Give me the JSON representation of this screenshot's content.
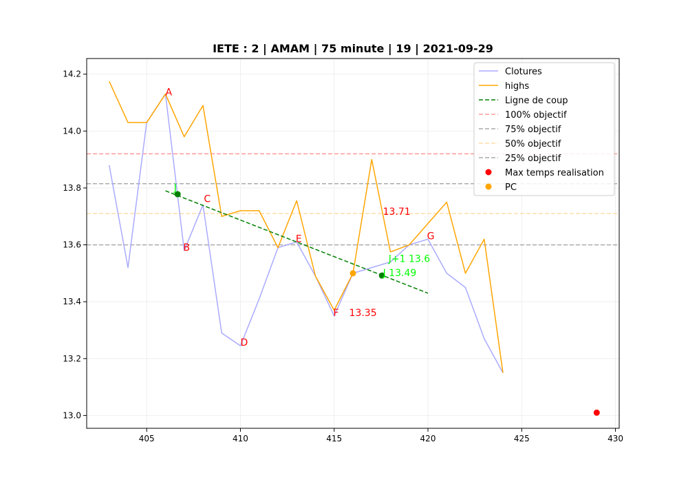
{
  "chart_data": {
    "type": "line",
    "title": "IETE : 2 | AMAM | 75 minute | 19 | 2021-09-29",
    "xlabel": "",
    "ylabel": "",
    "xlim": [
      401.8,
      430.2
    ],
    "ylim": [
      12.955,
      14.255
    ],
    "xticks": [
      405,
      410,
      415,
      420,
      425,
      430
    ],
    "yticks": [
      13.0,
      13.2,
      13.4,
      13.6,
      13.8,
      14.0,
      14.2
    ],
    "grid": true,
    "legend_position": "top-right",
    "series": [
      {
        "name": "Clotures",
        "kind": "line",
        "color": "#aaaaff",
        "x": [
          403,
          404,
          405,
          406,
          407,
          408,
          409,
          410,
          411,
          412,
          413,
          414,
          415,
          416,
          417,
          418,
          419,
          420,
          421,
          422,
          423,
          424
        ],
        "y": [
          13.88,
          13.52,
          14.03,
          14.13,
          13.58,
          13.74,
          13.29,
          13.245,
          13.41,
          13.59,
          13.61,
          13.49,
          13.35,
          13.5,
          13.52,
          13.54,
          13.6,
          13.62,
          13.5,
          13.45,
          13.27,
          13.15
        ]
      },
      {
        "name": "highs",
        "kind": "line",
        "color": "#ffa500",
        "x": [
          403,
          404,
          405,
          406,
          407,
          408,
          409,
          410,
          411,
          412,
          413,
          414,
          415,
          416,
          417,
          418,
          419,
          420,
          421,
          422,
          423,
          424
        ],
        "y": [
          14.175,
          14.03,
          14.03,
          14.13,
          13.98,
          14.09,
          13.7,
          13.72,
          13.72,
          13.59,
          13.755,
          13.49,
          13.37,
          13.5,
          13.9,
          13.575,
          13.6,
          13.675,
          13.75,
          13.5,
          13.62,
          13.15
        ]
      },
      {
        "name": "Ligne de coup",
        "kind": "dashed-line",
        "color": "#008000",
        "x": [
          406,
          420
        ],
        "y": [
          13.79,
          13.43
        ]
      },
      {
        "name": "100% objectif",
        "kind": "hline",
        "color": "#ff9999",
        "y": 13.92
      },
      {
        "name": "75% objectif",
        "kind": "hline",
        "color": "#aaaaaa",
        "y": 13.815
      },
      {
        "name": "50% objectif",
        "kind": "hline",
        "color": "#ffddaa",
        "y": 13.71
      },
      {
        "name": "25% objectif",
        "kind": "hline",
        "color": "#aaaaaa",
        "y": 13.6
      },
      {
        "name": "Max temps realisation",
        "kind": "scatter",
        "color": "#ff0000",
        "x": [
          429
        ],
        "y": [
          13.01
        ]
      },
      {
        "name": "PC",
        "kind": "scatter",
        "color": "#ffa500",
        "x": [
          416
        ],
        "y": [
          13.5
        ]
      }
    ],
    "green_points": [
      {
        "x": 406.65,
        "y": 13.778
      },
      {
        "x": 417.55,
        "y": 13.492
      }
    ],
    "annotations": [
      {
        "text": "A",
        "x": 406.0,
        "y": 14.125,
        "color": "#ff0000"
      },
      {
        "text": "B",
        "x": 406.95,
        "y": 13.58,
        "color": "#ff0000"
      },
      {
        "text": "C",
        "x": 408.05,
        "y": 13.75,
        "color": "#ff0000"
      },
      {
        "text": "D",
        "x": 410.0,
        "y": 13.245,
        "color": "#ff0000"
      },
      {
        "text": "E",
        "x": 412.95,
        "y": 13.61,
        "color": "#ff0000"
      },
      {
        "text": "F",
        "x": 414.95,
        "y": 13.35,
        "color": "#ff0000"
      },
      {
        "text": "G",
        "x": 419.95,
        "y": 13.62,
        "color": "#ff0000"
      },
      {
        "text": "13.35",
        "x": 415.8,
        "y": 13.35,
        "color": "#ff0000"
      },
      {
        "text": "13.71",
        "x": 417.6,
        "y": 13.705,
        "color": "#ff0000"
      },
      {
        "text": "J",
        "x": 406.45,
        "y": 13.79,
        "color": "#00ff00"
      },
      {
        "text": "J+1 13.6",
        "x": 417.9,
        "y": 13.54,
        "color": "#00ff00"
      },
      {
        "text": "J 13.49",
        "x": 417.6,
        "y": 13.49,
        "color": "#00ff00"
      }
    ]
  }
}
